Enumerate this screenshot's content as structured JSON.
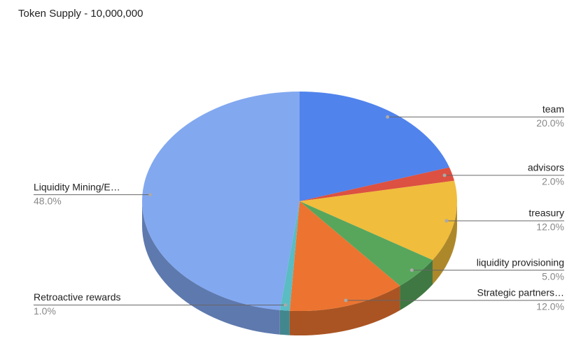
{
  "chart_data": {
    "type": "pie",
    "title": "Token Supply - 10,000,000",
    "categories": [
      "team",
      "advisors",
      "treasury",
      "liquidity provisioning",
      "Strategic partners…",
      "Retroactive rewards",
      "Liquidity Mining/E…"
    ],
    "values": [
      20,
      2,
      12,
      5,
      12,
      1,
      48
    ],
    "value_labels": [
      "20.0%",
      "2.0%",
      "12.0%",
      "5.0%",
      "12.0%",
      "1.0%",
      "48.0%"
    ],
    "colors": [
      "#5083ec",
      "#dc5141",
      "#f0bd3c",
      "#58a65c",
      "#ec7430",
      "#5bbcc4",
      "#82a8f0"
    ]
  }
}
